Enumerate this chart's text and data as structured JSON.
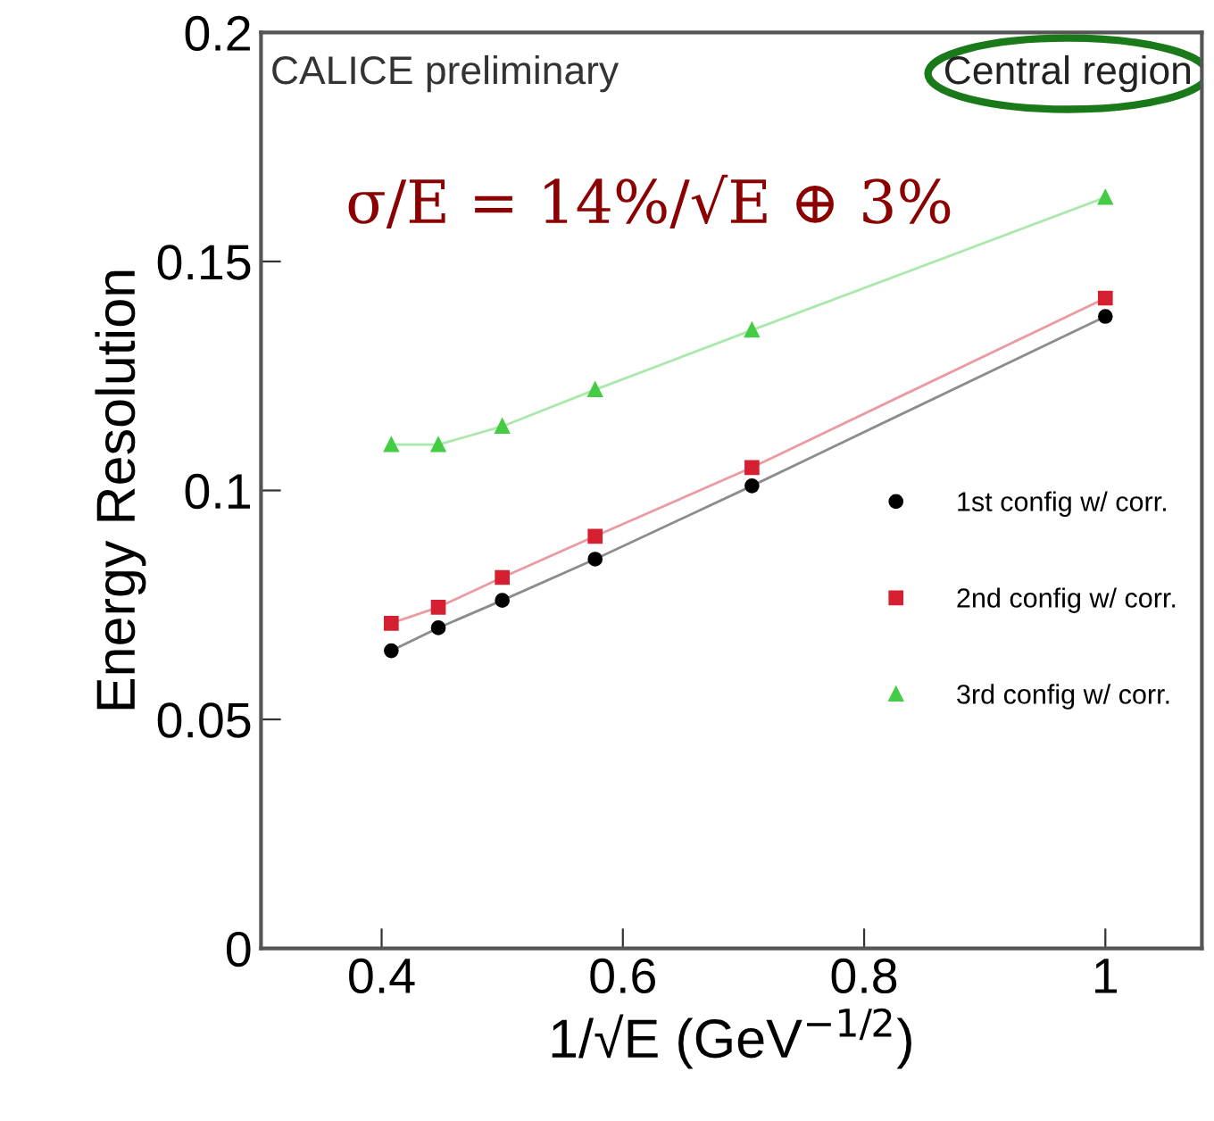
{
  "chart_data": {
    "type": "line",
    "xlabel": "1/√E (GeV$^{−1/2}$)",
    "ylabel": "Energy Resolution",
    "annotations": [
      "CALICE preliminary",
      "Central region",
      "σ/E = 14%/√E ⊕ 3%"
    ],
    "x": [
      0.408,
      0.447,
      0.5,
      0.577,
      0.707,
      1.0
    ],
    "series": [
      {
        "name": "1st config w/ corr.",
        "color": "#000000",
        "marker": "circle",
        "values": [
          0.065,
          0.07,
          0.076,
          0.085,
          0.101,
          0.138
        ]
      },
      {
        "name": "2nd config w/ corr.",
        "color": "#d42030",
        "marker": "square",
        "values": [
          0.071,
          0.0745,
          0.081,
          0.09,
          0.105,
          0.142
        ]
      },
      {
        "name": "3rd config w/ corr.",
        "color": "#44cc44",
        "marker": "triangle",
        "values": [
          0.11,
          0.11,
          0.114,
          0.122,
          0.135,
          0.164
        ]
      }
    ],
    "xlim": [
      0.3,
      1.08
    ],
    "xticks": [
      0.4,
      0.6,
      0.8,
      1
    ],
    "ylim": [
      0,
      0.2
    ],
    "yticks": [
      0,
      0.05,
      0.1,
      0.15,
      0.2
    ],
    "legend": "right",
    "grid": false
  }
}
